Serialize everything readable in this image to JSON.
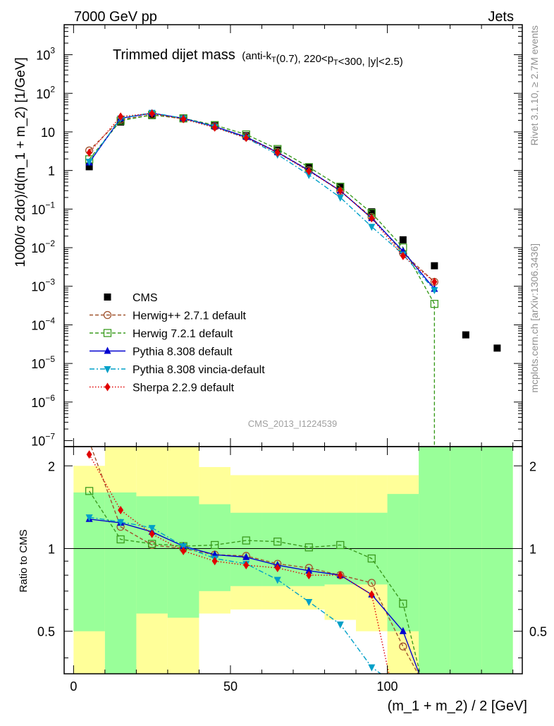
{
  "header": {
    "left": "7000 GeV pp",
    "right": "Jets"
  },
  "side_labels": {
    "rivet": "Rivet 3.1.10, ≥ 2.7M events",
    "mcplots": "mcplots.cern.ch [arXiv:1306.3436]"
  },
  "watermark": "CMS_2013_I1224539",
  "chart_data": [
    {
      "panel": "main",
      "type": "scatter",
      "title": "Trimmed dijet mass",
      "title_detail": "(anti-kT(0.7), 220<pT<300, |y|<2.5)",
      "xlabel": "(m_1 + m_2) / 2 [GeV]",
      "ylabel": "1000/σ 2dσ)/d(m_1 + m_2) [1/GeV]",
      "xlim": [
        -3,
        143
      ],
      "ylim": [
        7e-08,
        6000
      ],
      "yscale": "log",
      "y_ticks": [
        {
          "value": 1000,
          "base": "10",
          "exp": "3"
        },
        {
          "value": 100,
          "base": "10",
          "exp": "2"
        },
        {
          "value": 10,
          "base": "10",
          "exp": ""
        },
        {
          "value": 1,
          "base": "1",
          "exp": ""
        },
        {
          "value": 0.1,
          "base": "10",
          "exp": "−1"
        },
        {
          "value": 0.01,
          "base": "10",
          "exp": "−2"
        },
        {
          "value": 0.001,
          "base": "10",
          "exp": "−3"
        },
        {
          "value": 0.0001,
          "base": "10",
          "exp": "−4"
        },
        {
          "value": 1e-05,
          "base": "10",
          "exp": "−5"
        },
        {
          "value": 1e-06,
          "base": "10",
          "exp": "−6"
        },
        {
          "value": 1e-07,
          "base": "10",
          "exp": "−7"
        }
      ],
      "legend_position": "lower-left",
      "series": [
        {
          "name": "CMS",
          "color": "#000000",
          "marker": "square",
          "line": "none",
          "x": [
            5,
            15,
            25,
            35,
            45,
            55,
            65,
            75,
            85,
            95,
            105,
            115,
            125,
            135
          ],
          "y": [
            1.25,
            18.0,
            26.5,
            22.0,
            14.5,
            8.0,
            3.4,
            1.2,
            0.37,
            0.085,
            0.016,
            0.0034,
            5.5e-05,
            2.5e-05
          ]
        },
        {
          "name": "Herwig++ 2.7.1 default",
          "color": "#a0522d",
          "marker": "circle-open",
          "line": "dashed",
          "x": [
            5,
            15,
            25,
            35,
            45,
            55,
            65,
            75,
            85,
            95,
            105,
            115
          ],
          "y": [
            3.3,
            21.0,
            27.5,
            22.0,
            13.8,
            7.5,
            3.0,
            1.02,
            0.29,
            0.062,
            0.0072,
            0.0013
          ]
        },
        {
          "name": "Herwig 7.2.1 default",
          "color": "#3a9b1e",
          "marker": "square-open",
          "line": "dashed",
          "x": [
            5,
            15,
            25,
            35,
            45,
            55,
            65,
            75,
            85,
            95,
            105,
            115
          ],
          "y": [
            1.95,
            19.5,
            27.5,
            22.5,
            15.0,
            8.6,
            3.6,
            1.22,
            0.38,
            0.079,
            0.0101,
            0.00035
          ]
        },
        {
          "name": "Pythia 8.308 default",
          "color": "#0000d0",
          "marker": "triangle-up",
          "line": "solid",
          "x": [
            5,
            15,
            25,
            35,
            45,
            55,
            65,
            75,
            85,
            95,
            105,
            115
          ],
          "y": [
            1.6,
            22.5,
            30.5,
            22.5,
            13.8,
            7.4,
            2.95,
            1.0,
            0.3,
            0.058,
            0.0081,
            0.00085
          ]
        },
        {
          "name": "Pythia 8.308 vincia-default",
          "color": "#00a0c8",
          "marker": "triangle-down",
          "line": "dashdot",
          "x": [
            5,
            15,
            25,
            35,
            45,
            55,
            65,
            75,
            85,
            95,
            105,
            115
          ],
          "y": [
            1.7,
            22.5,
            31.5,
            22.5,
            13.3,
            7.0,
            2.6,
            0.77,
            0.2,
            0.035,
            0.0067,
            0.0008
          ]
        },
        {
          "name": "Sherpa 2.2.9 default",
          "color": "#e00000",
          "marker": "diamond",
          "line": "dotted",
          "x": [
            5,
            15,
            25,
            35,
            45,
            55,
            65,
            75,
            85,
            95,
            105,
            115
          ],
          "y": [
            2.9,
            25.0,
            30.0,
            21.5,
            13.0,
            7.0,
            2.9,
            0.96,
            0.3,
            0.058,
            0.0061,
            0.0013
          ]
        }
      ]
    },
    {
      "panel": "ratio",
      "type": "line",
      "ylabel": "Ratio to CMS",
      "xlabel": "(m_1 + m_2) / 2 [GeV]",
      "xlim": [
        -3,
        143
      ],
      "ylim": [
        0.35,
        2.35
      ],
      "x_ticks": [
        0,
        50,
        100
      ],
      "y_ticks": [
        0.5,
        1,
        2
      ],
      "reference": 1,
      "band_edges": [
        0,
        10,
        20,
        30,
        40,
        50,
        60,
        70,
        80,
        90,
        100,
        110,
        120,
        130,
        140
      ],
      "uncertainty_band_inner": {
        "color": "#99ff99",
        "low": [
          0.5,
          0.35,
          0.58,
          0.56,
          0.7,
          0.73,
          0.73,
          0.73,
          0.74,
          0.74,
          0.5,
          0.35,
          0.35,
          0.35
        ],
        "high": [
          1.6,
          1.6,
          1.55,
          1.55,
          1.45,
          1.35,
          1.35,
          1.35,
          1.35,
          1.35,
          1.58,
          2.4,
          2.4,
          2.4
        ]
      },
      "uncertainty_band_outer": {
        "color": "#ffff99",
        "low": [
          0.35,
          0.35,
          0.35,
          0.35,
          0.58,
          0.6,
          0.6,
          0.6,
          0.55,
          0.5,
          0.35,
          0.35,
          0.35,
          0.35
        ],
        "high": [
          2.0,
          2.4,
          2.4,
          2.4,
          1.98,
          1.85,
          1.85,
          1.85,
          1.85,
          1.85,
          1.85,
          2.2,
          2.4,
          2.1
        ]
      },
      "series": [
        {
          "name": "Herwig++ 2.7.1 default",
          "color": "#a0522d",
          "marker": "circle-open",
          "line": "dashed",
          "x": [
            5,
            15,
            25,
            35,
            45,
            55,
            65,
            75,
            85,
            95,
            105
          ],
          "y": [
            2.45,
            1.2,
            1.03,
            1.0,
            0.95,
            0.94,
            0.88,
            0.85,
            0.8,
            0.75,
            0.44
          ]
        },
        {
          "name": "Herwig 7.2.1 default",
          "color": "#3a9b1e",
          "marker": "square-open",
          "line": "dashed",
          "x": [
            5,
            15,
            25,
            35,
            45,
            55,
            65,
            75,
            85,
            95,
            105
          ],
          "y": [
            1.62,
            1.08,
            1.04,
            1.02,
            1.03,
            1.07,
            1.06,
            1.01,
            1.03,
            0.92,
            0.63
          ]
        },
        {
          "name": "Pythia 8.308 default",
          "color": "#0000d0",
          "marker": "triangle-up",
          "line": "solid",
          "x": [
            5,
            15,
            25,
            35,
            45,
            55,
            65,
            75,
            85,
            95,
            105
          ],
          "y": [
            1.28,
            1.24,
            1.15,
            1.02,
            0.95,
            0.93,
            0.87,
            0.83,
            0.8,
            0.68,
            0.5
          ]
        },
        {
          "name": "Pythia 8.308 vincia-default",
          "color": "#00a0c8",
          "marker": "triangle-down",
          "line": "dashdot",
          "x": [
            5,
            15,
            25,
            35,
            45,
            55,
            65,
            75,
            85,
            95
          ],
          "y": [
            1.3,
            1.25,
            1.19,
            1.02,
            0.92,
            0.88,
            0.77,
            0.64,
            0.53,
            0.37
          ]
        },
        {
          "name": "Sherpa 2.2.9 default",
          "color": "#e00000",
          "marker": "diamond",
          "line": "dotted",
          "x": [
            5,
            15,
            25,
            35,
            45,
            55,
            65,
            75,
            85,
            95
          ],
          "y": [
            2.2,
            1.38,
            1.13,
            0.98,
            0.9,
            0.87,
            0.85,
            0.8,
            0.8,
            0.68
          ]
        }
      ]
    }
  ]
}
